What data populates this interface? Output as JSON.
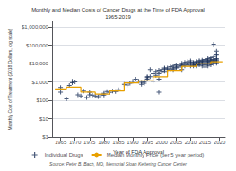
{
  "chart_data": {
    "type": "scatter",
    "title": "Monthly and Median Costs of Cancer Drugs at the Time of FDA Approval\n1965-2019",
    "xlabel": "Year of FDA Approval",
    "ylabel": "Monthly Cost of Treatment (2018 Dollars, log scale)",
    "annotations": [
      "Source: Peter B. Bach, MD, Memorial Sloan Kettering Cancer Center"
    ],
    "log": "y",
    "grid": "y",
    "legend": "bottom",
    "xlim": [
      1962,
      2022
    ],
    "xticks": [
      1965,
      1970,
      1975,
      1980,
      1985,
      1990,
      1995,
      2000,
      2005,
      2010,
      2015,
      2020
    ],
    "ylim": [
      1,
      2000000
    ],
    "yticks": [
      {
        "value": 1,
        "label": "$1"
      },
      {
        "value": 10,
        "label": "$10"
      },
      {
        "value": 100,
        "label": "$100"
      },
      {
        "value": 1000,
        "label": "$1,000"
      },
      {
        "value": 10000,
        "label": "$10,000"
      },
      {
        "value": 100000,
        "label": "$100,000"
      },
      {
        "value": 1000000,
        "label": "$1,000,000"
      }
    ],
    "series": [
      {
        "name": "Individual Drugs",
        "type": "scatter",
        "marker": "+",
        "color": "#1a3058",
        "x": [
          1965,
          1965,
          1967,
          1968,
          1969,
          1969,
          1970,
          1971,
          1972,
          1973,
          1974,
          1975,
          1975,
          1976,
          1977,
          1978,
          1979,
          1980,
          1980,
          1981,
          1982,
          1983,
          1984,
          1985,
          1987,
          1988,
          1989,
          1990,
          1991,
          1992,
          1993,
          1993,
          1994,
          1994,
          1995,
          1995,
          1995,
          1996,
          1996,
          1997,
          1997,
          1998,
          1998,
          1999,
          1999,
          1999,
          1999,
          2000,
          2000,
          2001,
          2001,
          2001,
          2002,
          2002,
          2003,
          2003,
          2004,
          2004,
          2004,
          2005,
          2005,
          2005,
          2006,
          2006,
          2006,
          2007,
          2007,
          2007,
          2007,
          2008,
          2008,
          2008,
          2009,
          2009,
          2009,
          2010,
          2010,
          2010,
          2010,
          2011,
          2011,
          2011,
          2011,
          2011,
          2012,
          2012,
          2012,
          2012,
          2012,
          2013,
          2013,
          2013,
          2013,
          2013,
          2014,
          2014,
          2014,
          2014,
          2014,
          2015,
          2015,
          2015,
          2015,
          2015,
          2015,
          2016,
          2016,
          2016,
          2016,
          2016,
          2016,
          2017,
          2017,
          2017,
          2017,
          2017,
          2017,
          2018,
          2018,
          2018,
          2018,
          2018,
          2018,
          2018,
          2019,
          2019,
          2019,
          2019,
          2019,
          2019,
          2019,
          2019
        ],
        "values": [
          500,
          280,
          120,
          650,
          900,
          1100,
          1000,
          200,
          170,
          320,
          140,
          280,
          200,
          190,
          170,
          160,
          200,
          240,
          190,
          300,
          270,
          320,
          300,
          380,
          750,
          680,
          850,
          1100,
          1400,
          1100,
          950,
          750,
          850,
          1050,
          1400,
          1900,
          1700,
          4800,
          1900,
          1100,
          2800,
          3800,
          2300,
          1400,
          280,
          4300,
          2800,
          4800,
          3800,
          5200,
          5800,
          3800,
          4800,
          5800,
          5200,
          6800,
          5800,
          7500,
          4800,
          6500,
          8500,
          5800,
          7500,
          9500,
          6500,
          8500,
          10500,
          7500,
          4800,
          9500,
          11500,
          7500,
          10500,
          8500,
          12500,
          9500,
          11500,
          7500,
          14000,
          9500,
          8500,
          11500,
          7500,
          10500,
          9500,
          11500,
          8500,
          13000,
          7500,
          10500,
          12500,
          8500,
          14500,
          9500,
          11500,
          13500,
          9500,
          7500,
          15500,
          12500,
          10500,
          14500,
          8500,
          17000,
          6500,
          13500,
          11500,
          15500,
          9500,
          19000,
          7500,
          14500,
          12500,
          16500,
          10500,
          21000,
          8500,
          15500,
          13500,
          17500,
          11500,
          24000,
          9500,
          115000,
          16500,
          14500,
          19000,
          12500,
          27000,
          10500,
          48000,
          33000
        ]
      },
      {
        "name": "Median Monthly Price (per 5 year period)",
        "type": "line",
        "line_style": "solid",
        "color": "#e8a000",
        "x": [
          1963,
          1967,
          1967,
          1972,
          1972,
          1977,
          1977,
          1982,
          1982,
          1987,
          1987,
          1992,
          1992,
          1997,
          1997,
          2002,
          2002,
          2007,
          2007,
          2012,
          2012,
          2017,
          2017,
          2021
        ],
        "values": [
          420,
          420,
          520,
          520,
          280,
          280,
          220,
          220,
          320,
          320,
          880,
          880,
          1150,
          1150,
          1900,
          1900,
          4300,
          4300,
          7200,
          7200,
          9800,
          9800,
          12500,
          12500
        ]
      }
    ]
  }
}
